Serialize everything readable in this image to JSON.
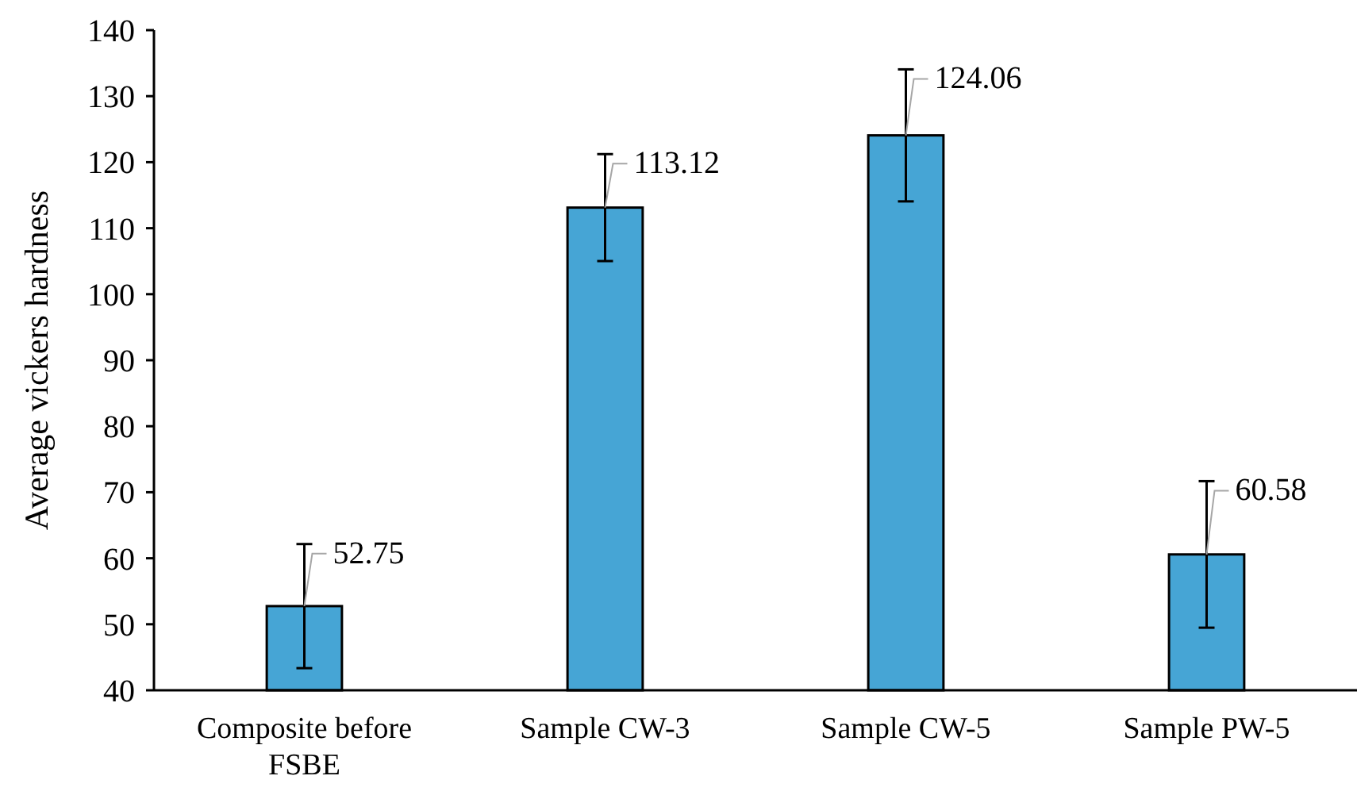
{
  "chart_data": {
    "type": "bar",
    "ylabel": "Average vickers hardness",
    "categories": [
      "Composite before FSBE",
      "Sample CW-3",
      "Sample CW-5",
      "Sample PW-5"
    ],
    "values": [
      52.75,
      113.12,
      124.06,
      60.58
    ],
    "errors": [
      9.4,
      8.1,
      10,
      11.1
    ],
    "color": "#46a5d5",
    "ylim": [
      40,
      140
    ],
    "yticks": [
      40,
      50,
      60,
      70,
      80,
      90,
      100,
      110,
      120,
      130,
      140
    ],
    "data_labels": true
  }
}
